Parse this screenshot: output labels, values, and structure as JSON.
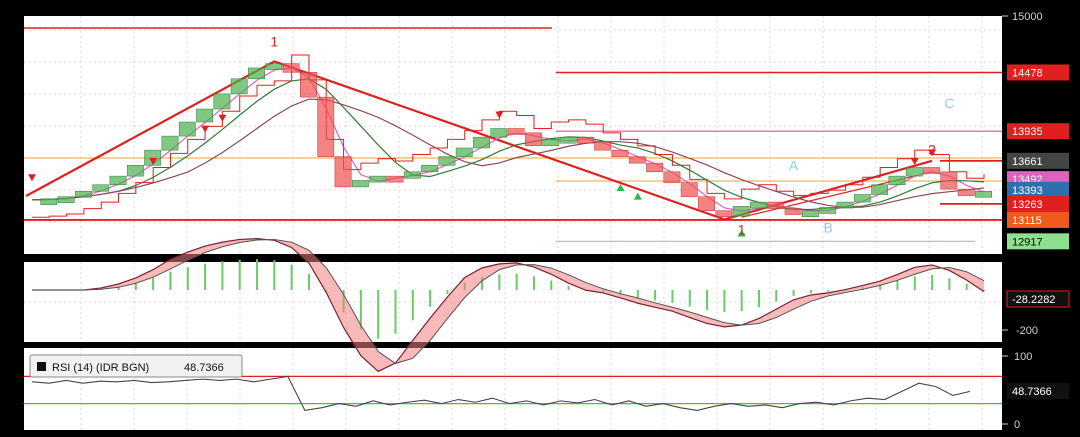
{
  "colors": {
    "background": "#ffffff",
    "frame": "#000000",
    "grid": "#d8d8d8",
    "trend": "#e0201f",
    "level": "#e0201f",
    "orange_level": "#f0a030",
    "pink_level": "#f07aa0",
    "green_level": "#8ee08e",
    "candle_up": "#4caf50",
    "candle_down": "#f05050",
    "ma_fast": "#e060c0",
    "ma_mid": "#2e7d32",
    "ma_slow": "#8b4a5a",
    "stop": "#e0201f",
    "rsi_line": "#444444",
    "rsi_hi": "#e0201f",
    "rsi_lo": "#33cc33",
    "marker_green": "#22bb44"
  },
  "chart_data": [
    {
      "type": "line",
      "panel": "price",
      "y_ticks": [
        "15000"
      ],
      "ylim": [
        12800,
        15000
      ],
      "price_levels": [
        {
          "value": "14478",
          "color": "#e0201f"
        },
        {
          "value": "13935",
          "color": "#e0201f"
        },
        {
          "value": "13661",
          "color": "#444444"
        },
        {
          "value": "13492",
          "color": "#e060c0"
        },
        {
          "value": "13393",
          "color": "#2f6fb0"
        },
        {
          "value": "13263",
          "color": "#e0201f"
        },
        {
          "value": "13115",
          "color": "#f05a1a"
        },
        {
          "value": "12917",
          "color": "#8ee08e"
        }
      ],
      "close_series": [
        13300,
        13310,
        13330,
        13380,
        13440,
        13520,
        13620,
        13760,
        13890,
        14020,
        14140,
        14280,
        14420,
        14520,
        14560,
        14480,
        14250,
        13700,
        13420,
        13480,
        13520,
        13500,
        13560,
        13620,
        13700,
        13780,
        13880,
        13960,
        13920,
        13800,
        13860,
        13880,
        13840,
        13760,
        13700,
        13640,
        13560,
        13460,
        13330,
        13200,
        13150,
        13240,
        13280,
        13220,
        13180,
        13200,
        13230,
        13280,
        13350,
        13440,
        13520,
        13600,
        13560,
        13400,
        13340,
        13380
      ],
      "annotations": [
        {
          "text": "1",
          "x_index": 14,
          "y": 14720,
          "color": "#e0201f"
        },
        {
          "text": "1",
          "x_index": 41,
          "y": 12980,
          "color": "#e0201f"
        },
        {
          "text": "2",
          "x_index": 52,
          "y": 13720,
          "color": "#e0201f"
        },
        {
          "text": "A",
          "x_index": 44,
          "y": 13570,
          "color": "#8fd0dd"
        },
        {
          "text": "B",
          "x_index": 46,
          "y": 13000,
          "color": "#8fd0dd"
        },
        {
          "text": "C",
          "x_index": 53,
          "y": 14150,
          "color": "#8fd0dd"
        }
      ]
    },
    {
      "type": "line",
      "panel": "oscillator",
      "y_ticks": [
        "-200"
      ],
      "current_value": "-28.2282"
    },
    {
      "type": "line",
      "panel": "rsi",
      "legend": "RSI (14) (IDR BGN)",
      "legend_value": "48.7366",
      "y_ticks": [
        "100",
        "0"
      ],
      "ylim": [
        0,
        100
      ],
      "levels": [
        70,
        30
      ],
      "current_value": "48.7366",
      "values": [
        62,
        60,
        64,
        60,
        63,
        62,
        64,
        61,
        62,
        64,
        66,
        64,
        66,
        62,
        66,
        70,
        20,
        24,
        30,
        26,
        34,
        28,
        32,
        35,
        30,
        36,
        32,
        38,
        30,
        34,
        28,
        34,
        31,
        36,
        28,
        34,
        26,
        30,
        24,
        20,
        26,
        30,
        26,
        28,
        24,
        30,
        32,
        28,
        34,
        38,
        36,
        48,
        60,
        55,
        42,
        48
      ]
    }
  ]
}
